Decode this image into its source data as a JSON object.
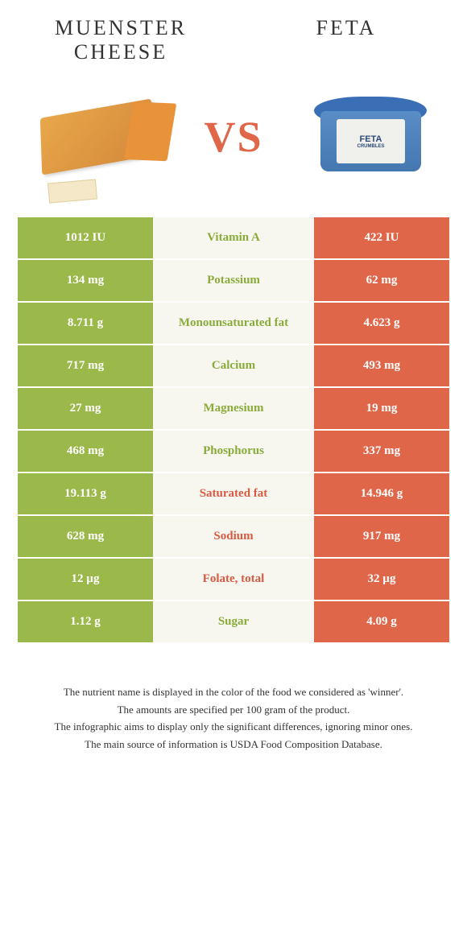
{
  "header": {
    "left_title": "MUENSTER CHEESE",
    "right_title": "FETA",
    "vs": "VS",
    "feta_label_main": "FETA",
    "feta_label_sub": "CRUMBLES"
  },
  "colors": {
    "green_cell": "#9bb84a",
    "orange_cell": "#e0664a",
    "mid_bg": "#f7f7f0",
    "mid_green_text": "#8aaa3a",
    "mid_orange_text": "#d85a42",
    "title_text": "#333333",
    "vs_text": "#e0664a"
  },
  "rows": [
    {
      "left": "1012 IU",
      "name": "Vitamin A",
      "right": "422 IU",
      "winner": "green"
    },
    {
      "left": "134 mg",
      "name": "Potassium",
      "right": "62 mg",
      "winner": "green"
    },
    {
      "left": "8.711 g",
      "name": "Monounsaturated fat",
      "right": "4.623 g",
      "winner": "green"
    },
    {
      "left": "717 mg",
      "name": "Calcium",
      "right": "493 mg",
      "winner": "green"
    },
    {
      "left": "27 mg",
      "name": "Magnesium",
      "right": "19 mg",
      "winner": "green"
    },
    {
      "left": "468 mg",
      "name": "Phosphorus",
      "right": "337 mg",
      "winner": "green"
    },
    {
      "left": "19.113 g",
      "name": "Saturated fat",
      "right": "14.946 g",
      "winner": "orange"
    },
    {
      "left": "628 mg",
      "name": "Sodium",
      "right": "917 mg",
      "winner": "orange"
    },
    {
      "left": "12 µg",
      "name": "Folate, total",
      "right": "32 µg",
      "winner": "orange"
    },
    {
      "left": "1.12 g",
      "name": "Sugar",
      "right": "4.09 g",
      "winner": "green"
    }
  ],
  "footer": {
    "line1": "The nutrient name is displayed in the color of the food we considered as 'winner'.",
    "line2": "The amounts are specified per 100 gram of the product.",
    "line3": "The infographic aims to display only the significant differences, ignoring minor ones.",
    "line4": "The main source of information is USDA Food Composition Database."
  }
}
